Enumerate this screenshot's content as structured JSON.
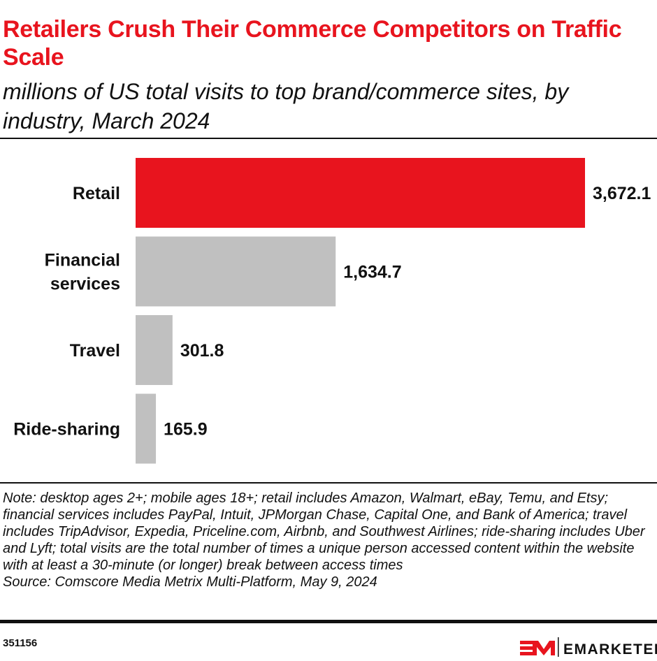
{
  "header": {
    "title": "Retailers Crush Their Commerce Competitors on Traffic Scale",
    "subtitle": "millions of US total visits to top brand/commerce sites, by industry, March 2024"
  },
  "chart_data": {
    "type": "bar",
    "orientation": "horizontal",
    "categories": [
      "Retail",
      "Financial services",
      "Travel",
      "Ride-sharing"
    ],
    "values": [
      3672.1,
      1634.7,
      301.8,
      165.9
    ],
    "data_labels": [
      "3,672.1",
      "1,634.7",
      "301.8",
      "165.9"
    ],
    "colors": [
      "#e8141e",
      "#c0c0c0",
      "#c0c0c0",
      "#c0c0c0"
    ],
    "xlim": [
      0,
      3672.1
    ],
    "grid": false
  },
  "footer": {
    "note": "Note: desktop ages 2+; mobile ages 18+; retail includes Amazon, Walmart, eBay, Temu, and Etsy; financial services includes PayPal, Intuit, JPMorgan Chase, Capital One, and Bank of America; travel includes TripAdvisor, Expedia, Priceline.com, Airbnb, and Southwest Airlines; ride-sharing includes Uber and Lyft; total visits are the total number of times a unique person accessed content within the website with at least a 30-minute (or longer) break between access times",
    "source": "Source: Comscore Media Metrix Multi-Platform, May 9, 2024",
    "chart_id": "351156",
    "brand": "EMARKETER"
  }
}
